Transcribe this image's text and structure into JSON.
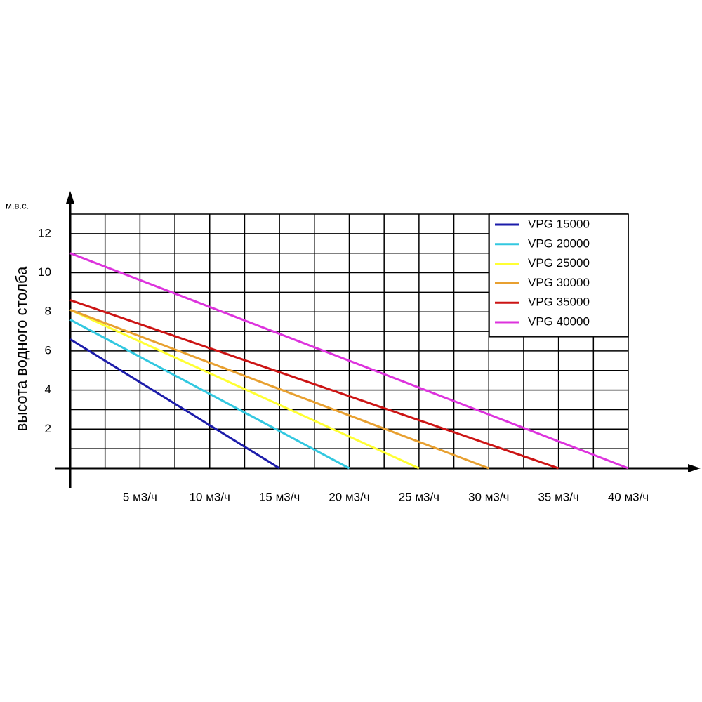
{
  "chart_data": {
    "type": "line",
    "unit_label": "м.в.с.",
    "y_label": "высота водного столба",
    "xlim": [
      0,
      40
    ],
    "ylim": [
      0,
      13
    ],
    "xticks": [
      {
        "value": 5,
        "label": "5 м3/ч"
      },
      {
        "value": 10,
        "label": "10 м3/ч"
      },
      {
        "value": 15,
        "label": "15 м3/ч"
      },
      {
        "value": 20,
        "label": "20 м3/ч"
      },
      {
        "value": 25,
        "label": "25 м3/ч"
      },
      {
        "value": 30,
        "label": "30 м3/ч"
      },
      {
        "value": 35,
        "label": "35 м3/ч"
      },
      {
        "value": 40,
        "label": "40 м3/ч"
      }
    ],
    "yticks": [
      2,
      4,
      6,
      8,
      10,
      12
    ],
    "xgrid": [
      2.5,
      5,
      7.5,
      10,
      12.5,
      15,
      17.5,
      20,
      22.5,
      25,
      27.5,
      30,
      32.5,
      35,
      37.5,
      40
    ],
    "ygrid": [
      1,
      2,
      3,
      4,
      5,
      6,
      7,
      8,
      9,
      10,
      11,
      12,
      13
    ],
    "grid": true,
    "legend": "upper right",
    "series": [
      {
        "name": "VPG 15000",
        "color": "#1c1caa",
        "x": [
          0,
          15
        ],
        "values": [
          6.6,
          0
        ]
      },
      {
        "name": "VPG 20000",
        "color": "#33c8e0",
        "x": [
          0,
          20
        ],
        "values": [
          7.6,
          0
        ]
      },
      {
        "name": "VPG 25000",
        "color": "#ffff33",
        "x": [
          0,
          25
        ],
        "values": [
          8.1,
          0
        ]
      },
      {
        "name": "VPG 30000",
        "color": "#e8a030",
        "x": [
          0,
          30
        ],
        "values": [
          8.1,
          0
        ]
      },
      {
        "name": "VPG 35000",
        "color": "#cc1414",
        "x": [
          0,
          35
        ],
        "values": [
          8.6,
          0
        ]
      },
      {
        "name": "VPG 40000",
        "color": "#dd33dd",
        "x": [
          0,
          40
        ],
        "values": [
          11,
          0
        ]
      }
    ]
  }
}
